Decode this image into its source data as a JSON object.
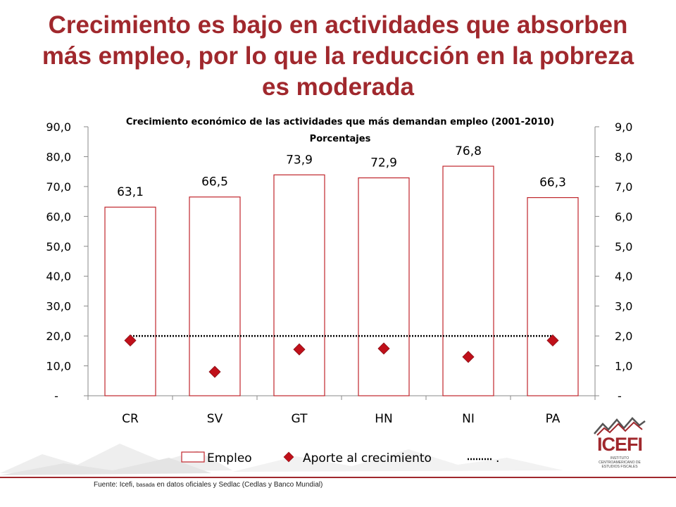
{
  "slide": {
    "title": "Crecimiento es bajo en actividades que absorben más empleo, por lo que la reducción en la pobreza es moderada",
    "footnote_prefix": "Fuente: Icefi,",
    "footnote_small": "basada",
    "footnote_rest": "en datos oficiales y Sedlac (Cedlas y Banco Mundial)",
    "logo_text": "ICEFI",
    "logo_subtitle": "INSTITUTO CENTROAMERICANO DE ESTUDIOS FISCALES",
    "colors": {
      "title": "#a0282d",
      "bar_edge": "#c0262c",
      "marker": "#c0101a"
    }
  },
  "chart_data": {
    "type": "bar",
    "title": "Crecimiento económico de las actividades que más demandan empleo (2001-2010)",
    "subtitle": "Porcentajes",
    "categories": [
      "CR",
      "SV",
      "GT",
      "HN",
      "NI",
      "PA"
    ],
    "series": [
      {
        "name": "Empleo",
        "kind": "bar",
        "axis": "left",
        "values": [
          63.1,
          66.5,
          73.9,
          72.9,
          76.8,
          66.3
        ],
        "data_labels": [
          "63,1",
          "66,5",
          "73,9",
          "72,9",
          "76,8",
          "66,3"
        ]
      },
      {
        "name": "Aporte al crecimiento",
        "kind": "marker",
        "marker": "diamond",
        "axis": "right",
        "values": [
          1.85,
          0.8,
          1.55,
          1.58,
          1.3,
          1.85
        ]
      },
      {
        "name": ".",
        "kind": "dotted-line",
        "axis": "right",
        "values": [
          2.0,
          2.0,
          2.0,
          2.0,
          2.0,
          2.0
        ]
      }
    ],
    "left_axis": {
      "ylim": [
        0,
        90
      ],
      "ticks": [
        "-",
        "10,0",
        "20,0",
        "30,0",
        "40,0",
        "50,0",
        "60,0",
        "70,0",
        "80,0",
        "90,0"
      ]
    },
    "right_axis": {
      "ylim": [
        0,
        9
      ],
      "ticks": [
        "-",
        "1,0",
        "2,0",
        "3,0",
        "4,0",
        "5,0",
        "6,0",
        "7,0",
        "8,0",
        "9,0"
      ]
    },
    "grid": false,
    "legend": "bottom"
  }
}
